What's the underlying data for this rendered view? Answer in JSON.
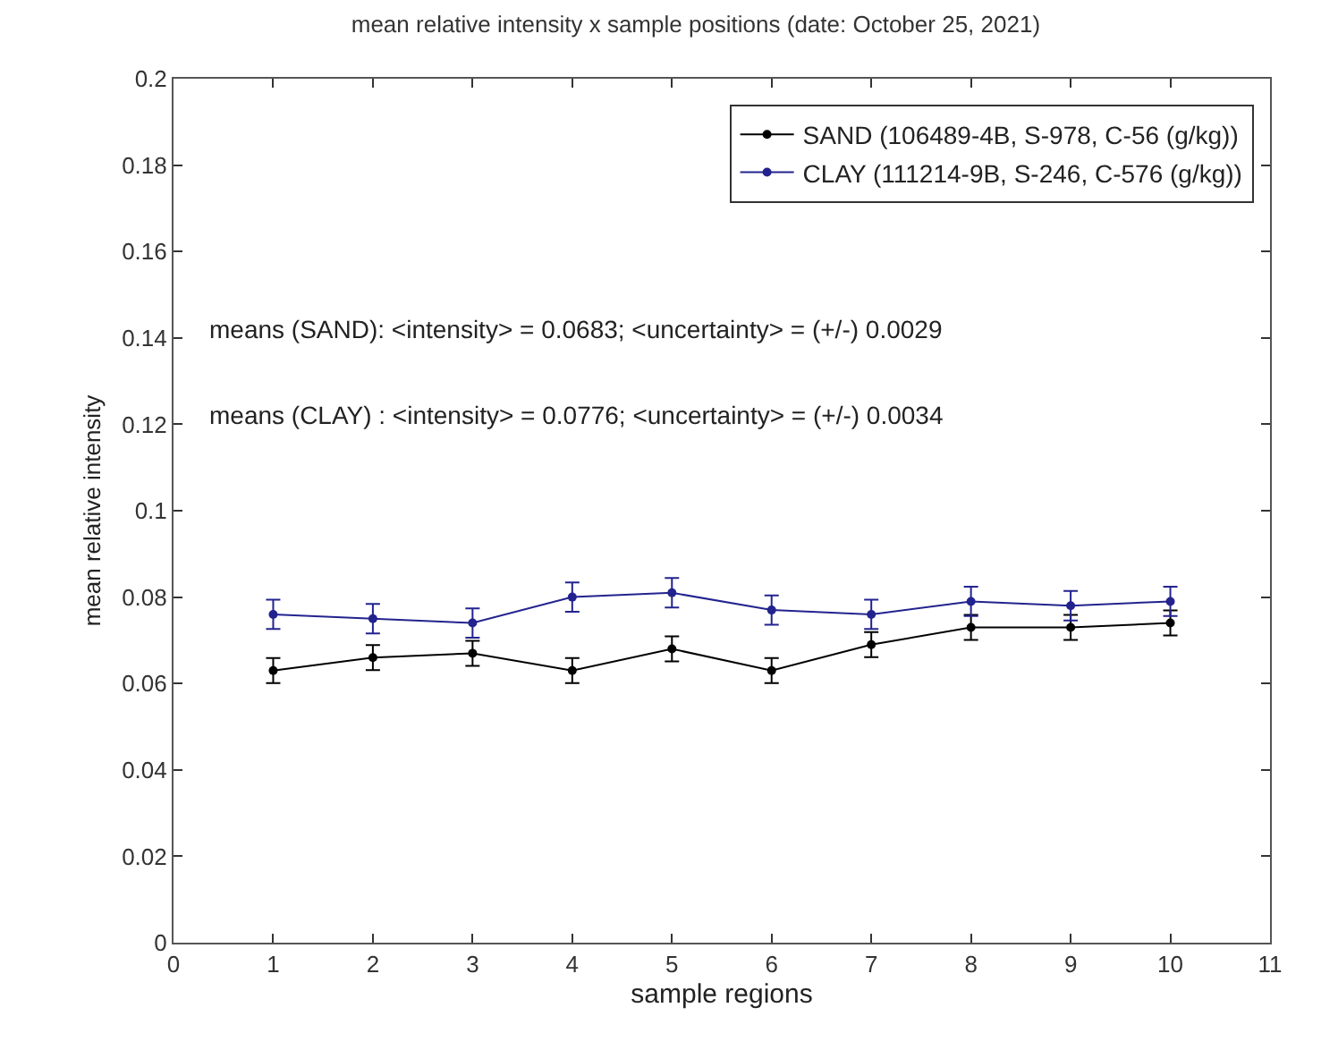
{
  "chart_data": {
    "type": "line",
    "title": "mean relative intensity x sample positions (date: October 25, 2021)",
    "xlabel": "sample regions",
    "ylabel": "mean relative intensity",
    "x": [
      1,
      2,
      3,
      4,
      5,
      6,
      7,
      8,
      9,
      10
    ],
    "series": [
      {
        "name": "SAND (106489-4B, S-978, C-56 (g/kg))",
        "color": "#000000",
        "values": [
          0.063,
          0.066,
          0.067,
          0.063,
          0.068,
          0.063,
          0.069,
          0.073,
          0.073,
          0.074
        ],
        "errors": [
          0.0029,
          0.0029,
          0.0029,
          0.0029,
          0.0029,
          0.0029,
          0.0029,
          0.0029,
          0.0029,
          0.0029
        ]
      },
      {
        "name": "CLAY (111214-9B, S-246, C-576 (g/kg))",
        "color": "#23238f",
        "values": [
          0.076,
          0.075,
          0.074,
          0.08,
          0.081,
          0.077,
          0.076,
          0.079,
          0.078,
          0.079
        ],
        "errors": [
          0.0034,
          0.0034,
          0.0034,
          0.0034,
          0.0034,
          0.0034,
          0.0034,
          0.0034,
          0.0034,
          0.0034
        ]
      }
    ],
    "annotations": [
      "means (SAND): <intensity> = 0.0683; <uncertainty> = (+/-) 0.0029",
      "means (CLAY) : <intensity> = 0.0776; <uncertainty> = (+/-) 0.0034"
    ],
    "xlim": [
      0,
      11
    ],
    "xticks": [
      0,
      1,
      2,
      3,
      4,
      5,
      6,
      7,
      8,
      9,
      10,
      11
    ],
    "ylim": [
      0,
      0.2
    ],
    "yticks": [
      0,
      0.02,
      0.04,
      0.06,
      0.08,
      0.1,
      0.12,
      0.14,
      0.16,
      0.18,
      0.2
    ],
    "grid": false,
    "legend": "top right",
    "marker": "circle",
    "line_style": "solid"
  }
}
